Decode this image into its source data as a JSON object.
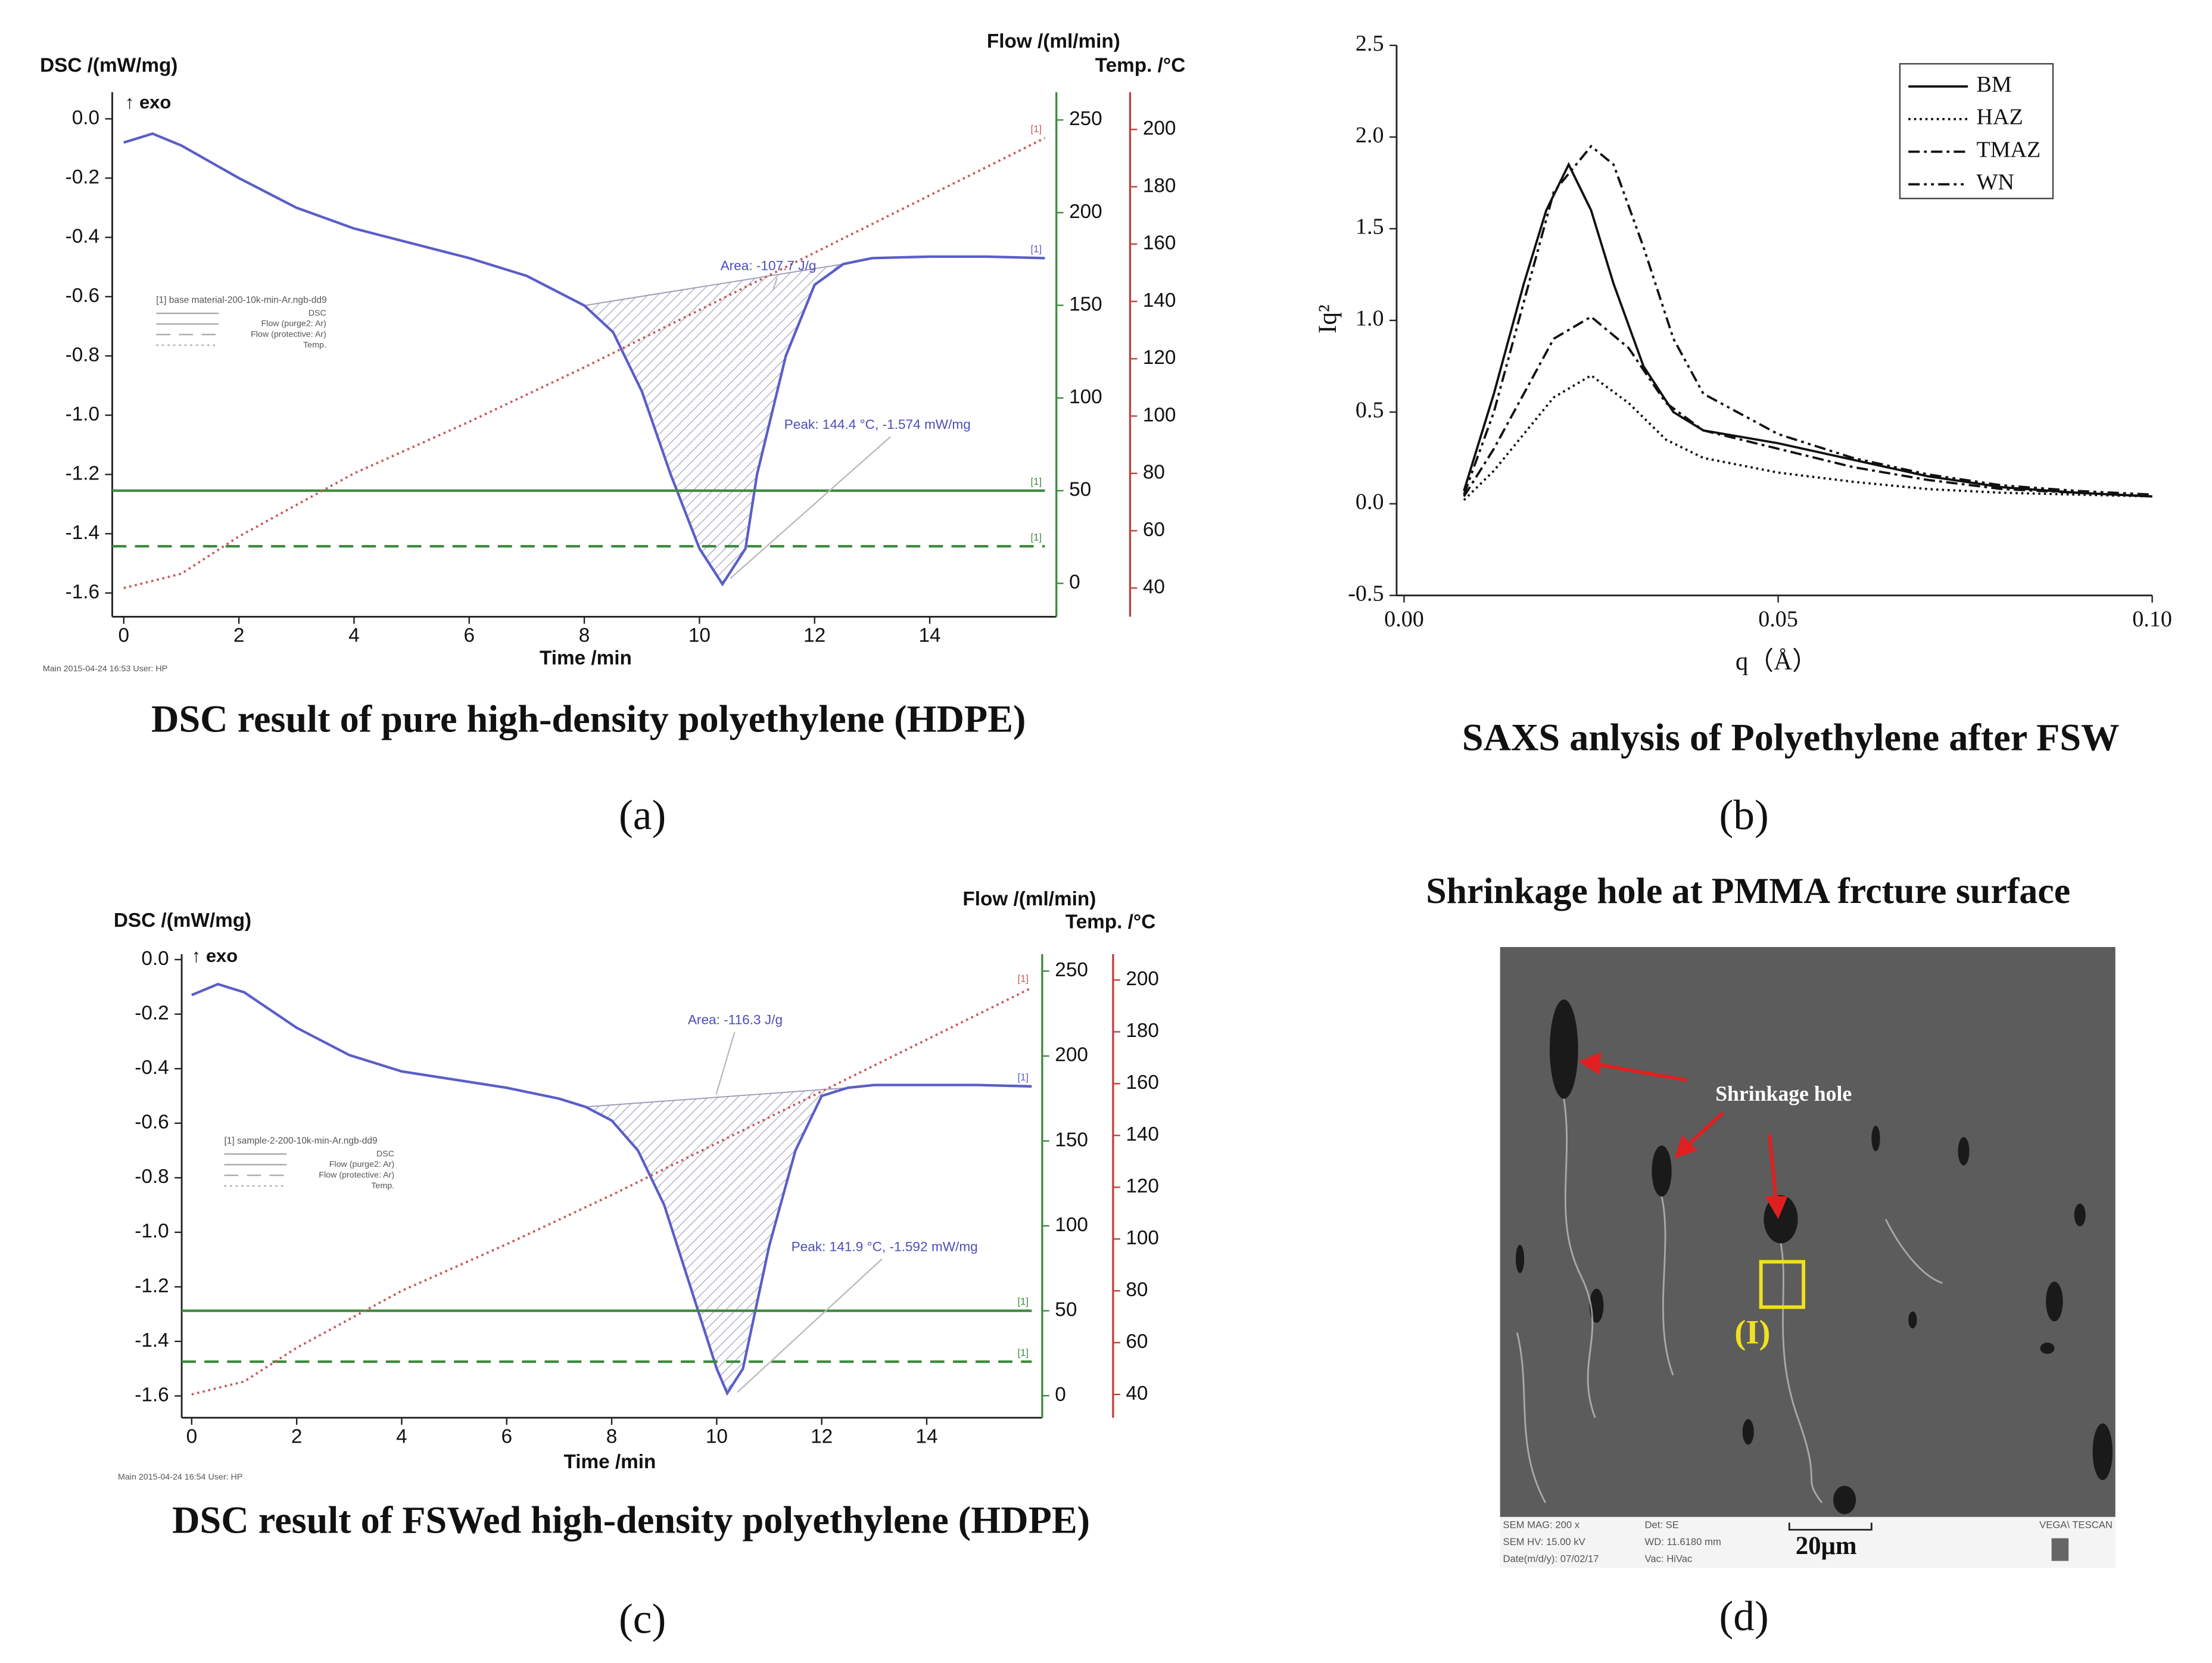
{
  "chart_data": [
    {
      "type": "line",
      "title": "DSC result of pure high-density polyethylene (HDPE)",
      "xlabel": "Time /min",
      "ylabel": "DSC /(mW/mg)",
      "y2label": "Flow /(ml/min)",
      "y3label": "Temp. /°C",
      "xlim": [
        -0.2,
        16.2
      ],
      "xticks": [
        0,
        2,
        4,
        6,
        8,
        10,
        12,
        14
      ],
      "ylim": [
        -1.68,
        0.09
      ],
      "yticks": [
        {
          "value": 0,
          "label": "0.0"
        },
        -0.2,
        -0.4,
        -0.6,
        -0.8,
        {
          "value": -1,
          "label": "-1.0"
        },
        -1.2,
        -1.4,
        -1.6
      ],
      "y2lim": [
        -18,
        265
      ],
      "y2ticks": [
        0,
        50,
        100,
        150,
        200,
        250
      ],
      "y3lim": [
        30,
        213
      ],
      "y3ticks": [
        40,
        60,
        80,
        100,
        120,
        140,
        160,
        180,
        200
      ],
      "legend": "center left",
      "legend_title": "[1] base material-200-10k-min-Ar.ngb-dd9",
      "marker_label": "[1]",
      "exo_label": "↑ exo",
      "area_label": "Area: -107.7 J/g",
      "peak_label": "Peak: 144.4 °C, -1.574 mW/mg",
      "footer": "Main   2015-04-24 16:53   User: HP",
      "series": [
        {
          "name": "DSC",
          "color": "#5a5ec8",
          "style": "solid",
          "axis": "y",
          "x": [
            0,
            0.5,
            1,
            2,
            3,
            4,
            5,
            6,
            7,
            8,
            8.5,
            9,
            9.5,
            10,
            10.4,
            10.8,
            11,
            11.5,
            12,
            12.5,
            13,
            14,
            15,
            16
          ],
          "values": [
            -0.08,
            -0.05,
            -0.09,
            -0.2,
            -0.3,
            -0.37,
            -0.42,
            -0.47,
            -0.53,
            -0.63,
            -0.72,
            -0.92,
            -1.2,
            -1.45,
            -1.57,
            -1.45,
            -1.2,
            -0.8,
            -0.56,
            -0.49,
            -0.47,
            -0.465,
            -0.465,
            -0.47
          ]
        },
        {
          "name": "Flow (purge2: Ar)",
          "color": "#3d8b3d",
          "style": "solid",
          "axis": "y2",
          "x": [
            -0.2,
            16
          ],
          "values": [
            50,
            50
          ]
        },
        {
          "name": "Flow (protective: Ar)",
          "color": "#3d8b3d",
          "style": "dashed",
          "axis": "y2",
          "x": [
            -0.2,
            16
          ],
          "values": [
            20,
            20
          ]
        },
        {
          "name": "Temp.",
          "color": "#c85a5a",
          "style": "dotted",
          "axis": "y3",
          "x": [
            0,
            1,
            2,
            4,
            6,
            8,
            10,
            12,
            14,
            16
          ],
          "values": [
            40,
            45,
            58,
            80,
            98,
            117,
            137,
            157,
            177,
            197
          ]
        }
      ]
    },
    {
      "type": "line",
      "title": "SAXS anlysis of Polyethylene after FSW",
      "xlabel": "q（Å）",
      "ylabel": "Iq²",
      "xlim": [
        -0.001,
        0.1
      ],
      "xticks": [
        {
          "value": 0,
          "label": "0.00"
        },
        0.05,
        {
          "value": 0.1,
          "label": "0.10"
        }
      ],
      "ylim": [
        -0.5,
        2.5
      ],
      "yticks": [
        -0.5,
        {
          "value": 0,
          "label": "0.0"
        },
        0.5,
        {
          "value": 1,
          "label": "1.0"
        },
        1.5,
        {
          "value": 2,
          "label": "2.0"
        },
        2.5
      ],
      "legend": "upper right",
      "series": [
        {
          "name": "BM",
          "color": "#111111",
          "style": "solid",
          "x": [
            0.008,
            0.012,
            0.016,
            0.019,
            0.022,
            0.025,
            0.028,
            0.032,
            0.036,
            0.04,
            0.05,
            0.06,
            0.07,
            0.08,
            0.09,
            0.1
          ],
          "values": [
            0.07,
            0.6,
            1.2,
            1.6,
            1.85,
            1.6,
            1.2,
            0.75,
            0.5,
            0.4,
            0.33,
            0.24,
            0.15,
            0.09,
            0.06,
            0.04
          ]
        },
        {
          "name": "HAZ",
          "color": "#111111",
          "style": "dotted",
          "x": [
            0.008,
            0.012,
            0.016,
            0.02,
            0.025,
            0.03,
            0.035,
            0.04,
            0.05,
            0.06,
            0.07,
            0.08,
            0.09,
            0.1
          ],
          "values": [
            0.02,
            0.18,
            0.38,
            0.58,
            0.7,
            0.55,
            0.35,
            0.25,
            0.17,
            0.12,
            0.08,
            0.06,
            0.05,
            0.04
          ]
        },
        {
          "name": "TMAZ",
          "color": "#111111",
          "style": "dashdot",
          "x": [
            0.008,
            0.012,
            0.016,
            0.02,
            0.025,
            0.03,
            0.035,
            0.04,
            0.05,
            0.06,
            0.07,
            0.08,
            0.09,
            0.1
          ],
          "values": [
            0.04,
            0.3,
            0.6,
            0.9,
            1.02,
            0.85,
            0.55,
            0.4,
            0.3,
            0.2,
            0.13,
            0.08,
            0.06,
            0.04
          ]
        },
        {
          "name": "WN",
          "color": "#111111",
          "style": "dashdotdot",
          "x": [
            0.008,
            0.012,
            0.016,
            0.02,
            0.025,
            0.028,
            0.032,
            0.036,
            0.04,
            0.05,
            0.06,
            0.07,
            0.08,
            0.09,
            0.1
          ],
          "values": [
            0.05,
            0.5,
            1.1,
            1.7,
            1.95,
            1.85,
            1.4,
            0.9,
            0.6,
            0.38,
            0.25,
            0.16,
            0.1,
            0.07,
            0.05
          ]
        }
      ]
    },
    {
      "type": "line",
      "title": "DSC result of FSWed high-density polyethylene (HDPE)",
      "xlabel": "Time /min",
      "ylabel": "DSC /(mW/mg)",
      "y2label": "Flow /(ml/min)",
      "y3label": "Temp. /°C",
      "xlim": [
        -0.19,
        16.2
      ],
      "xticks": [
        0,
        2,
        4,
        6,
        8,
        10,
        12,
        14
      ],
      "ylim": [
        -1.68,
        0.02
      ],
      "yticks": [
        {
          "value": 0,
          "label": "0.0"
        },
        -0.2,
        -0.4,
        -0.6,
        -0.8,
        {
          "value": -1,
          "label": "-1.0"
        },
        -1.2,
        -1.4,
        -1.6
      ],
      "y2lim": [
        -13,
        260
      ],
      "y2ticks": [
        0,
        50,
        100,
        150,
        200,
        250
      ],
      "y3lim": [
        31,
        210
      ],
      "y3ticks": [
        40,
        60,
        80,
        100,
        120,
        140,
        160,
        180,
        200
      ],
      "legend": "center left",
      "legend_title": "[1] sample-2-200-10k-min-Ar.ngb-dd9",
      "marker_label": "[1]",
      "exo_label": "↑ exo",
      "area_label": "Area: -116.3 J/g",
      "peak_label": "Peak: 141.9 °C, -1.592 mW/mg",
      "footer": "Main   2015-04-24 16:54   User: HP",
      "series": [
        {
          "name": "DSC",
          "color": "#5a5ec8",
          "style": "solid",
          "axis": "y",
          "x": [
            0,
            0.5,
            1,
            2,
            3,
            4,
            5,
            6,
            7,
            7.5,
            8,
            8.5,
            9,
            9.5,
            10,
            10.2,
            10.5,
            11,
            11.5,
            12,
            12.5,
            13,
            14,
            15,
            16
          ],
          "values": [
            -0.13,
            -0.09,
            -0.12,
            -0.25,
            -0.35,
            -0.41,
            -0.44,
            -0.47,
            -0.51,
            -0.54,
            -0.59,
            -0.7,
            -0.9,
            -1.2,
            -1.5,
            -1.59,
            -1.5,
            -1.05,
            -0.7,
            -0.5,
            -0.47,
            -0.46,
            -0.46,
            -0.46,
            -0.465
          ]
        },
        {
          "name": "Flow (purge2: Ar)",
          "color": "#3d8b3d",
          "style": "solid",
          "axis": "y2",
          "x": [
            -0.19,
            16
          ],
          "values": [
            50,
            50
          ]
        },
        {
          "name": "Flow (protective: Ar)",
          "color": "#3d8b3d",
          "style": "dashed",
          "axis": "y2",
          "x": [
            -0.19,
            16
          ],
          "values": [
            20,
            20
          ]
        },
        {
          "name": "Temp.",
          "color": "#c85a5a",
          "style": "dotted",
          "axis": "y3",
          "x": [
            0,
            1,
            2,
            4,
            6,
            8,
            10,
            12,
            14,
            16
          ],
          "values": [
            40,
            45,
            58,
            80,
            98,
            117,
            137,
            157,
            177,
            197
          ]
        }
      ]
    }
  ],
  "figure": {
    "panel_labels": [
      "(a)",
      "(b)",
      "(c)",
      "(d)"
    ],
    "sem_image": {
      "title": "Shrinkage hole at PMMA frcture surface",
      "arrow_label": "Shrinkage hole",
      "region_label": "(I)",
      "scale_label": "20μm",
      "info": [
        "SEM MAG: 200 x",
        "Det: SE",
        "VEGA\\ TESCAN",
        "SEM HV: 15.00 kV",
        "WD: 11.6180 mm",
        "Date(m/d/y): 07/02/17",
        "Vac: HiVac"
      ]
    }
  }
}
